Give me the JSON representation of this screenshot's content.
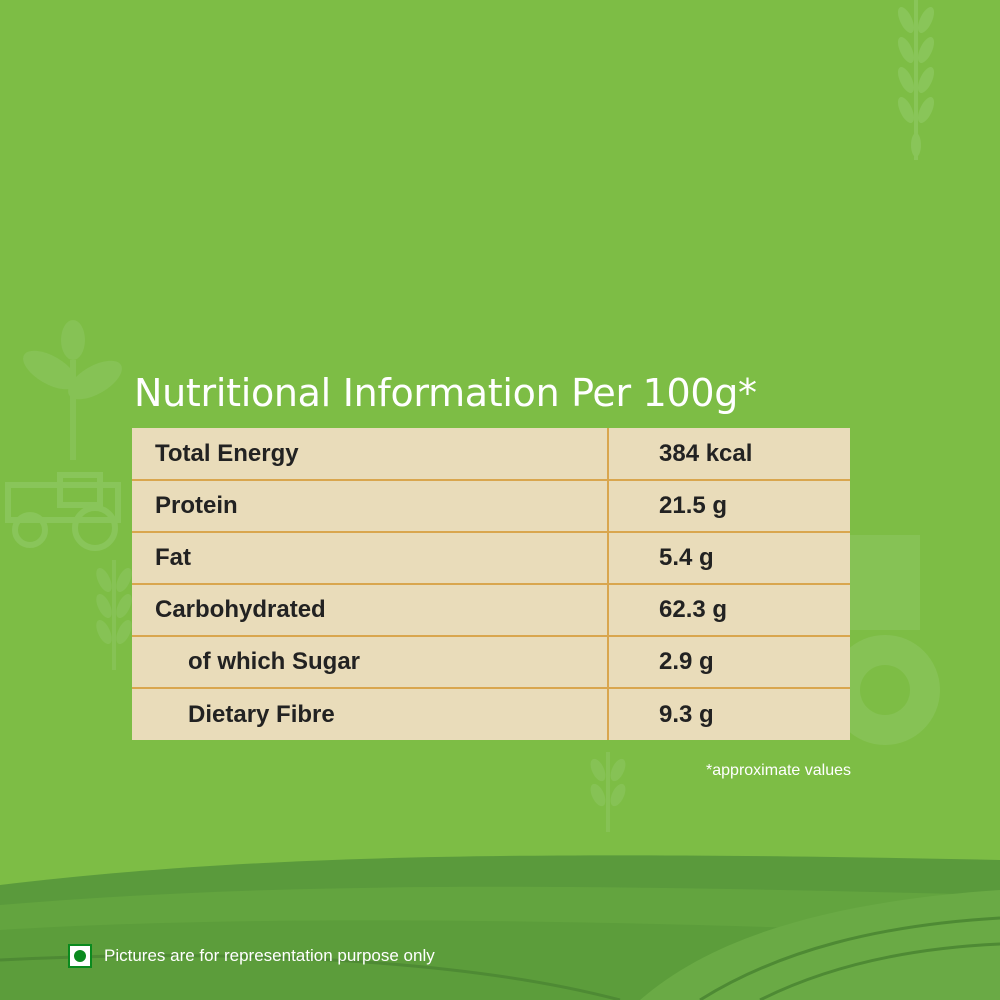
{
  "title": "Nutritional Information Per 100g*",
  "rows": [
    {
      "name": "Total Energy",
      "value": "384 kcal"
    },
    {
      "name": "Protein",
      "value": "21.5 g"
    },
    {
      "name": "Fat",
      "value": "5.4 g"
    },
    {
      "name": "Carbohydrated",
      "value": "62.3 g"
    },
    {
      "name": "of which Sugar",
      "value": "2.9 g"
    },
    {
      "name": "Dietary Fibre",
      "value": "9.3 g"
    }
  ],
  "note": "*approximate values",
  "disclaimer": "Pictures are for representation purpose only",
  "colors": {
    "background": "#7dbd45",
    "table_fill": "#e9dcba",
    "table_lines": "#d9a64e",
    "veg_mark": "#0a8a1e"
  },
  "icons": [
    "wheat-stalk-icon",
    "tractor-icon",
    "veg-symbol-icon"
  ]
}
